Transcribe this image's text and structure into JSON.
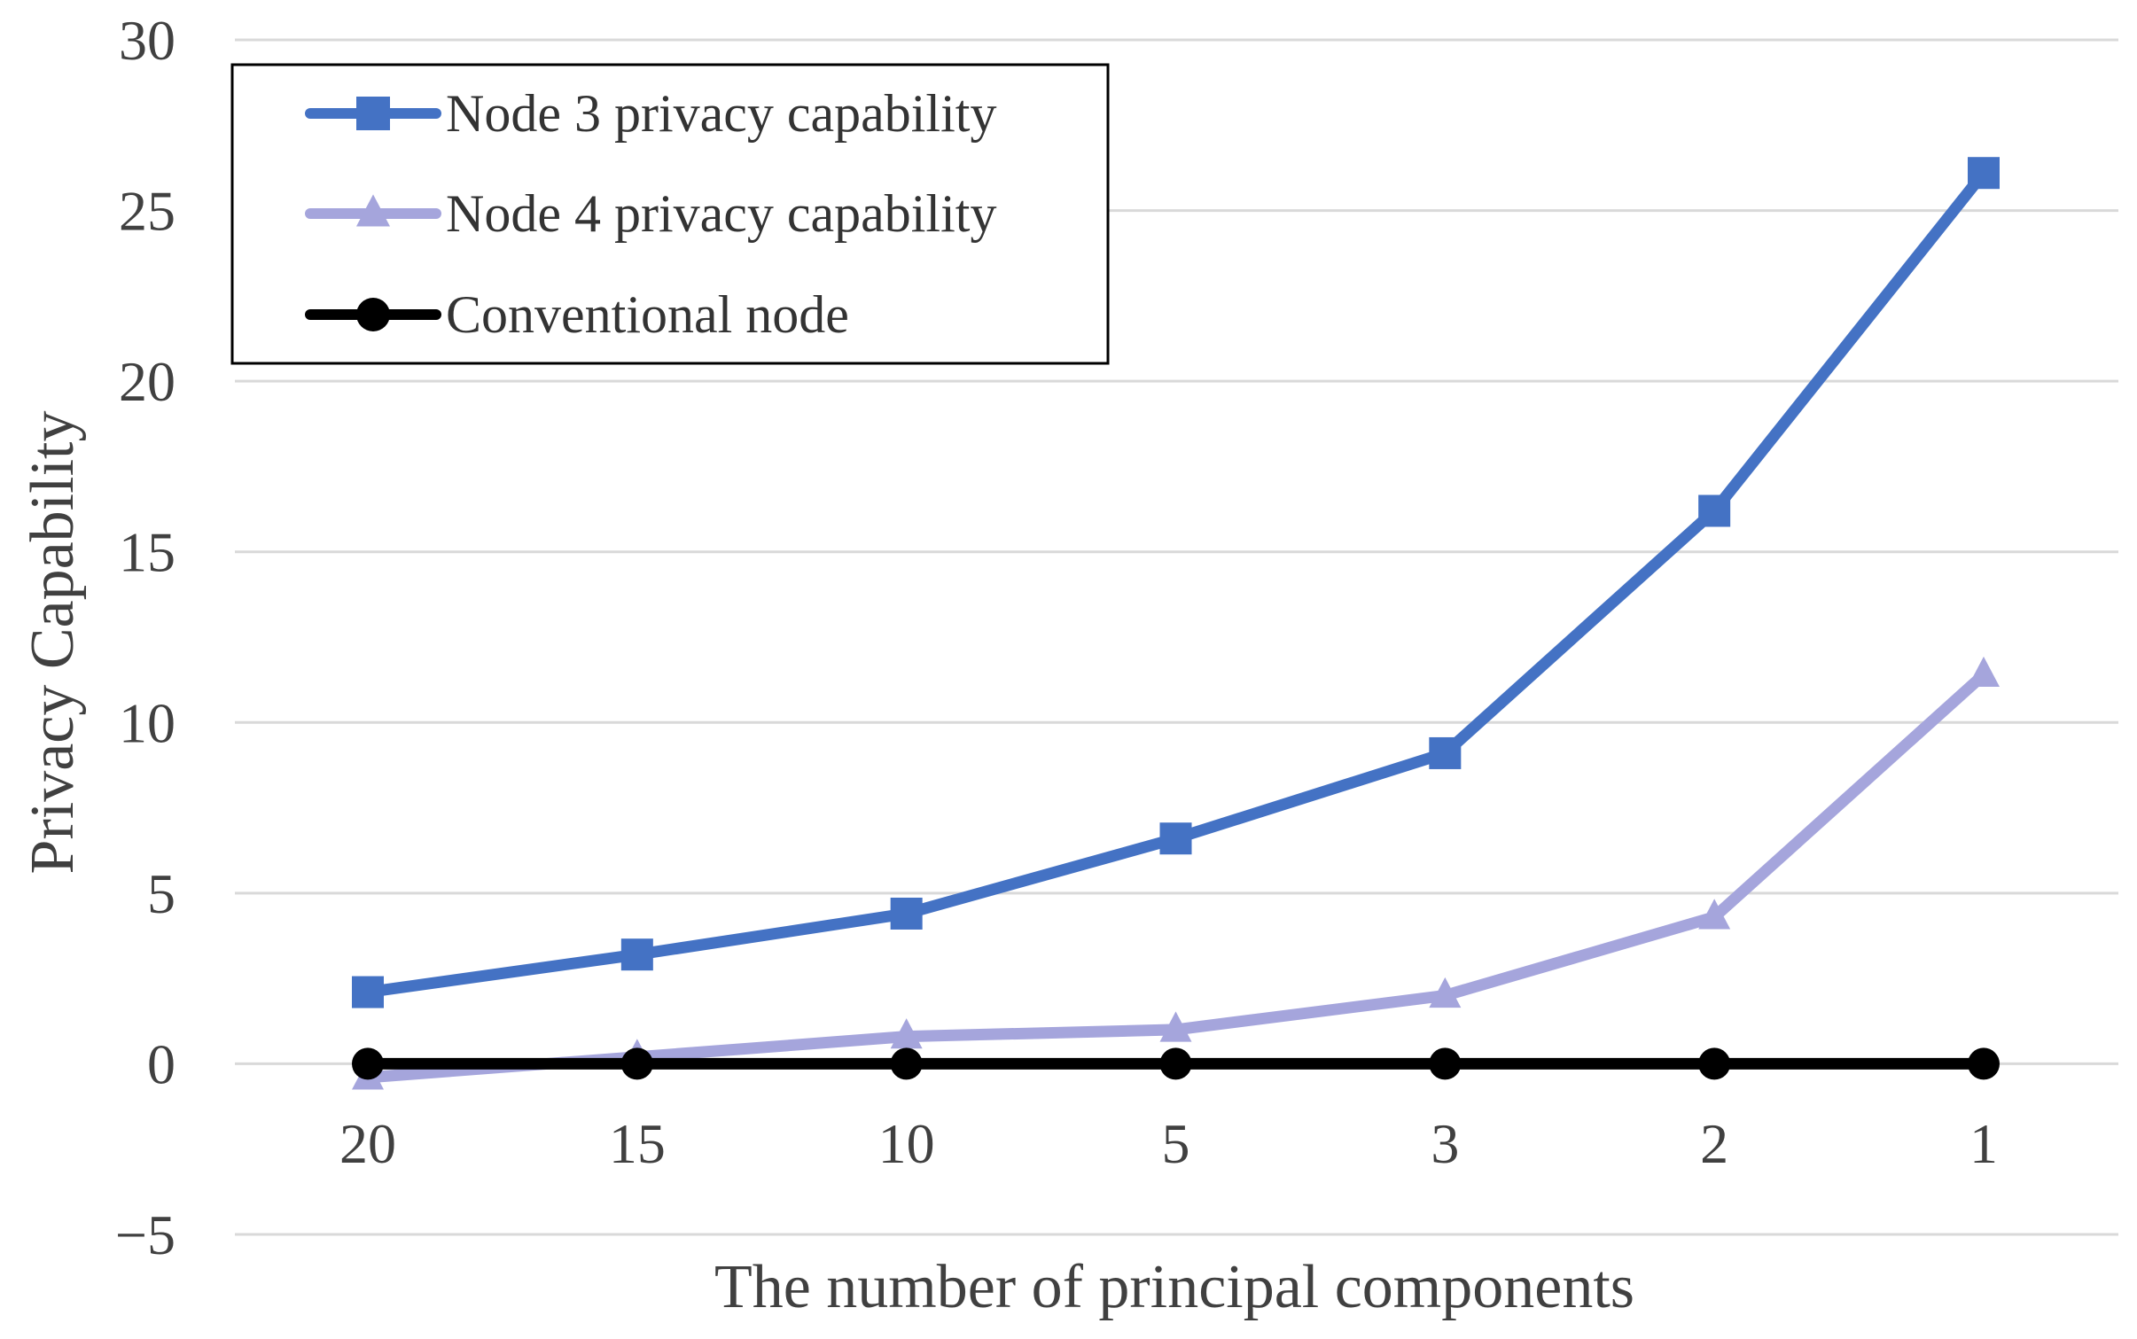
{
  "chart_data": {
    "type": "line",
    "title": "",
    "xlabel": "The number of principal components",
    "ylabel": "Privacy Capability",
    "categories": [
      "20",
      "15",
      "10",
      "5",
      "3",
      "2",
      "1"
    ],
    "ylim": [
      -5,
      30
    ],
    "yticks": [
      -5,
      0,
      5,
      10,
      15,
      20,
      25,
      30
    ],
    "ytick_labels": [
      "−5",
      "0",
      "5",
      "10",
      "15",
      "20",
      "25",
      "30"
    ],
    "grid": true,
    "legend_position": "top-left",
    "series": [
      {
        "name": "Node 3 privacy capability",
        "color": "#4472C4",
        "marker": "square",
        "values": [
          2.1,
          3.2,
          4.4,
          6.6,
          9.1,
          16.2,
          26.1
        ]
      },
      {
        "name": "Node 4 privacy capability",
        "color": "#A5A5DC",
        "marker": "triangle",
        "values": [
          -0.4,
          0.2,
          0.8,
          1.0,
          2.0,
          4.3,
          11.4
        ]
      },
      {
        "name": "Conventional node",
        "color": "#000000",
        "marker": "circle",
        "values": [
          0,
          0,
          0,
          0,
          0,
          0,
          0
        ]
      }
    ]
  }
}
